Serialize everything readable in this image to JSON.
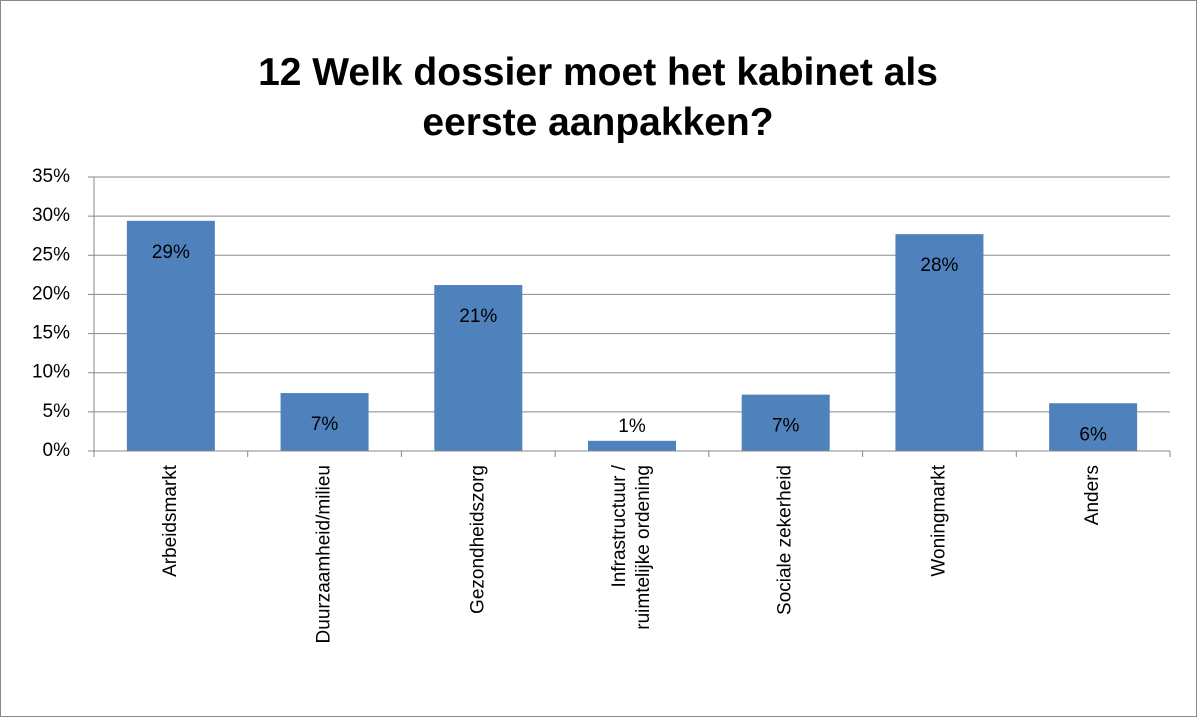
{
  "chart_data": {
    "type": "bar",
    "title": "12 Welk dossier moet het kabinet als eerste aanpakken?",
    "categories": [
      "Arbeidsmarkt",
      "Duurzaamheid/milieu",
      "Gezondheidszorg",
      "Infrastructuur / ruimtelijke ordening",
      "Sociale zekerheid",
      "Woningmarkt",
      "Anders"
    ],
    "values": [
      29.4,
      7.4,
      21.2,
      1.3,
      7.2,
      27.7,
      6.1
    ],
    "value_labels": [
      "29%",
      "7%",
      "21%",
      "1%",
      "7%",
      "28%",
      "6%"
    ],
    "color": "#4f81bd",
    "ylim": [
      0,
      35
    ],
    "yticks": [
      {
        "value": 0,
        "label": "0%"
      },
      {
        "value": 5,
        "label": "5%"
      },
      {
        "value": 10,
        "label": "10%"
      },
      {
        "value": 15,
        "label": "15%"
      },
      {
        "value": 20,
        "label": "20%"
      },
      {
        "value": 25,
        "label": "25%"
      },
      {
        "value": 30,
        "label": "30%"
      },
      {
        "value": 35,
        "label": "35%"
      }
    ],
    "grid": true
  }
}
